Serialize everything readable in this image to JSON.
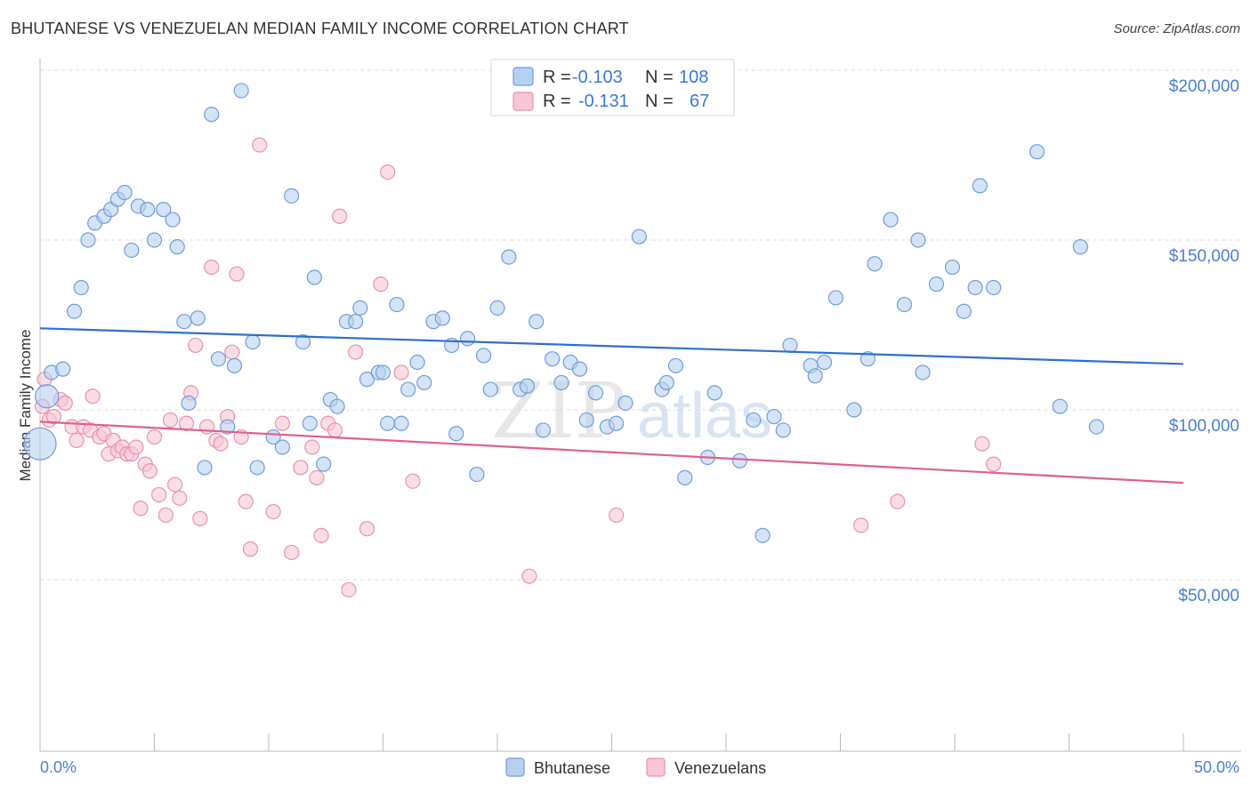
{
  "header": {
    "title": "BHUTANESE VS VENEZUELAN MEDIAN FAMILY INCOME CORRELATION CHART",
    "source": "Source: ZipAtlas.com"
  },
  "watermark": {
    "zip": "ZIP",
    "atlas": "atlas"
  },
  "legend": {
    "r_label": "R =",
    "n_label": "N =",
    "rows": [
      {
        "r": "-0.103",
        "n": "108"
      },
      {
        "r": "-0.131",
        "n": "67"
      }
    ]
  },
  "colors": {
    "bhutanese_fill": "#b8d0f0",
    "bhutanese_stroke": "#6e9edc",
    "bhutanese_line": "#2e6fcf",
    "venezuelan_fill": "#f8c6d6",
    "venezuelan_stroke": "#e893b0",
    "venezuelan_line": "#e0608e",
    "grid": "#dddddd",
    "tick_label": "#4a7fcf"
  },
  "chart_data": {
    "type": "scatter",
    "title": "BHUTANESE VS VENEZUELAN MEDIAN FAMILY INCOME CORRELATION CHART",
    "xlabel": "",
    "ylabel": "Median Family Income",
    "xlim": [
      0,
      50
    ],
    "ylim": [
      0,
      205000
    ],
    "x_tick_labels": [
      "0.0%",
      "50.0%"
    ],
    "y_ticks": [
      50000,
      100000,
      150000,
      200000
    ],
    "y_tick_labels": [
      "$50,000",
      "$100,000",
      "$150,000",
      "$200,000"
    ],
    "grid": true,
    "legend_position": "top-center",
    "series": [
      {
        "name": "Bhutanese",
        "trend": {
          "x": [
            0,
            50
          ],
          "y": [
            124000,
            113500
          ]
        },
        "points": [
          [
            0.0,
            90000
          ],
          [
            0.3,
            104000
          ],
          [
            0.5,
            111000
          ],
          [
            1.0,
            112000
          ],
          [
            1.5,
            129000
          ],
          [
            1.8,
            136000
          ],
          [
            2.1,
            150000
          ],
          [
            2.4,
            155000
          ],
          [
            2.8,
            157000
          ],
          [
            3.1,
            159000
          ],
          [
            3.4,
            162000
          ],
          [
            3.7,
            164000
          ],
          [
            4.0,
            147000
          ],
          [
            4.3,
            160000
          ],
          [
            4.7,
            159000
          ],
          [
            5.0,
            150000
          ],
          [
            5.4,
            159000
          ],
          [
            5.8,
            156000
          ],
          [
            6.0,
            148000
          ],
          [
            6.3,
            126000
          ],
          [
            6.5,
            102000
          ],
          [
            6.9,
            127000
          ],
          [
            7.2,
            83000
          ],
          [
            7.5,
            187000
          ],
          [
            7.8,
            115000
          ],
          [
            8.2,
            95000
          ],
          [
            8.5,
            113000
          ],
          [
            8.8,
            194000
          ],
          [
            9.3,
            120000
          ],
          [
            9.5,
            83000
          ],
          [
            10.2,
            92000
          ],
          [
            10.6,
            89000
          ],
          [
            11.0,
            163000
          ],
          [
            11.5,
            120000
          ],
          [
            11.8,
            96000
          ],
          [
            12.0,
            139000
          ],
          [
            12.4,
            84000
          ],
          [
            12.7,
            103000
          ],
          [
            13.0,
            101000
          ],
          [
            13.4,
            126000
          ],
          [
            13.8,
            126000
          ],
          [
            14.0,
            130000
          ],
          [
            14.3,
            109000
          ],
          [
            14.8,
            111000
          ],
          [
            15.0,
            111000
          ],
          [
            15.2,
            96000
          ],
          [
            15.6,
            131000
          ],
          [
            15.8,
            96000
          ],
          [
            16.1,
            106000
          ],
          [
            16.5,
            114000
          ],
          [
            16.8,
            108000
          ],
          [
            17.2,
            126000
          ],
          [
            17.6,
            127000
          ],
          [
            18.0,
            119000
          ],
          [
            18.2,
            93000
          ],
          [
            18.7,
            121000
          ],
          [
            19.1,
            81000
          ],
          [
            19.4,
            116000
          ],
          [
            19.7,
            106000
          ],
          [
            20.0,
            130000
          ],
          [
            20.5,
            145000
          ],
          [
            21.0,
            106000
          ],
          [
            21.3,
            107000
          ],
          [
            21.7,
            126000
          ],
          [
            22.0,
            94000
          ],
          [
            22.4,
            115000
          ],
          [
            22.8,
            108000
          ],
          [
            23.2,
            114000
          ],
          [
            23.6,
            112000
          ],
          [
            23.9,
            97000
          ],
          [
            24.3,
            105000
          ],
          [
            24.8,
            95000
          ],
          [
            25.2,
            96000
          ],
          [
            25.6,
            102000
          ],
          [
            26.2,
            151000
          ],
          [
            27.2,
            106000
          ],
          [
            27.4,
            108000
          ],
          [
            27.8,
            113000
          ],
          [
            28.2,
            80000
          ],
          [
            29.2,
            86000
          ],
          [
            29.5,
            105000
          ],
          [
            30.6,
            85000
          ],
          [
            31.2,
            97000
          ],
          [
            31.6,
            63000
          ],
          [
            32.1,
            98000
          ],
          [
            32.5,
            94000
          ],
          [
            32.8,
            119000
          ],
          [
            33.7,
            113000
          ],
          [
            33.9,
            110000
          ],
          [
            34.3,
            114000
          ],
          [
            34.8,
            133000
          ],
          [
            35.6,
            100000
          ],
          [
            36.2,
            115000
          ],
          [
            36.5,
            143000
          ],
          [
            37.2,
            156000
          ],
          [
            37.8,
            131000
          ],
          [
            38.4,
            150000
          ],
          [
            38.6,
            111000
          ],
          [
            39.2,
            137000
          ],
          [
            39.9,
            142000
          ],
          [
            40.4,
            129000
          ],
          [
            40.9,
            136000
          ],
          [
            41.7,
            136000
          ],
          [
            41.1,
            166000
          ],
          [
            43.6,
            176000
          ],
          [
            44.6,
            101000
          ],
          [
            45.5,
            148000
          ],
          [
            46.2,
            95000
          ]
        ]
      },
      {
        "name": "Venezuelans",
        "trend": {
          "x": [
            0,
            50
          ],
          "y": [
            96500,
            78500
          ]
        },
        "points": [
          [
            0.1,
            101000
          ],
          [
            0.4,
            97000
          ],
          [
            0.6,
            98000
          ],
          [
            0.9,
            103000
          ],
          [
            1.1,
            102000
          ],
          [
            1.4,
            95000
          ],
          [
            1.6,
            91000
          ],
          [
            1.9,
            95000
          ],
          [
            2.2,
            94000
          ],
          [
            2.3,
            104000
          ],
          [
            2.6,
            92000
          ],
          [
            2.8,
            93000
          ],
          [
            3.0,
            87000
          ],
          [
            3.2,
            91000
          ],
          [
            3.4,
            88000
          ],
          [
            3.6,
            89000
          ],
          [
            3.8,
            87000
          ],
          [
            4.0,
            87000
          ],
          [
            4.2,
            89000
          ],
          [
            4.4,
            71000
          ],
          [
            4.6,
            84000
          ],
          [
            4.8,
            82000
          ],
          [
            5.0,
            92000
          ],
          [
            5.2,
            75000
          ],
          [
            5.5,
            69000
          ],
          [
            5.7,
            97000
          ],
          [
            5.9,
            78000
          ],
          [
            6.1,
            74000
          ],
          [
            6.4,
            96000
          ],
          [
            6.6,
            105000
          ],
          [
            6.8,
            119000
          ],
          [
            7.0,
            68000
          ],
          [
            7.3,
            95000
          ],
          [
            7.5,
            142000
          ],
          [
            7.7,
            91000
          ],
          [
            7.9,
            90000
          ],
          [
            8.2,
            98000
          ],
          [
            8.4,
            117000
          ],
          [
            8.6,
            140000
          ],
          [
            8.8,
            92000
          ],
          [
            9.0,
            73000
          ],
          [
            9.2,
            59000
          ],
          [
            9.6,
            178000
          ],
          [
            10.2,
            70000
          ],
          [
            10.6,
            96000
          ],
          [
            11.0,
            58000
          ],
          [
            11.4,
            83000
          ],
          [
            11.9,
            89000
          ],
          [
            12.1,
            80000
          ],
          [
            12.3,
            63000
          ],
          [
            12.6,
            96000
          ],
          [
            13.1,
            157000
          ],
          [
            13.5,
            47000
          ],
          [
            13.8,
            117000
          ],
          [
            14.3,
            65000
          ],
          [
            14.9,
            137000
          ],
          [
            15.2,
            170000
          ],
          [
            15.8,
            111000
          ],
          [
            16.3,
            79000
          ],
          [
            21.4,
            51000
          ],
          [
            25.2,
            69000
          ],
          [
            35.9,
            66000
          ],
          [
            37.5,
            73000
          ],
          [
            41.2,
            90000
          ],
          [
            41.7,
            84000
          ],
          [
            0.2,
            109000
          ],
          [
            12.9,
            94000
          ]
        ]
      }
    ]
  },
  "bottom_legend": [
    "Bhutanese",
    "Venezuelans"
  ]
}
